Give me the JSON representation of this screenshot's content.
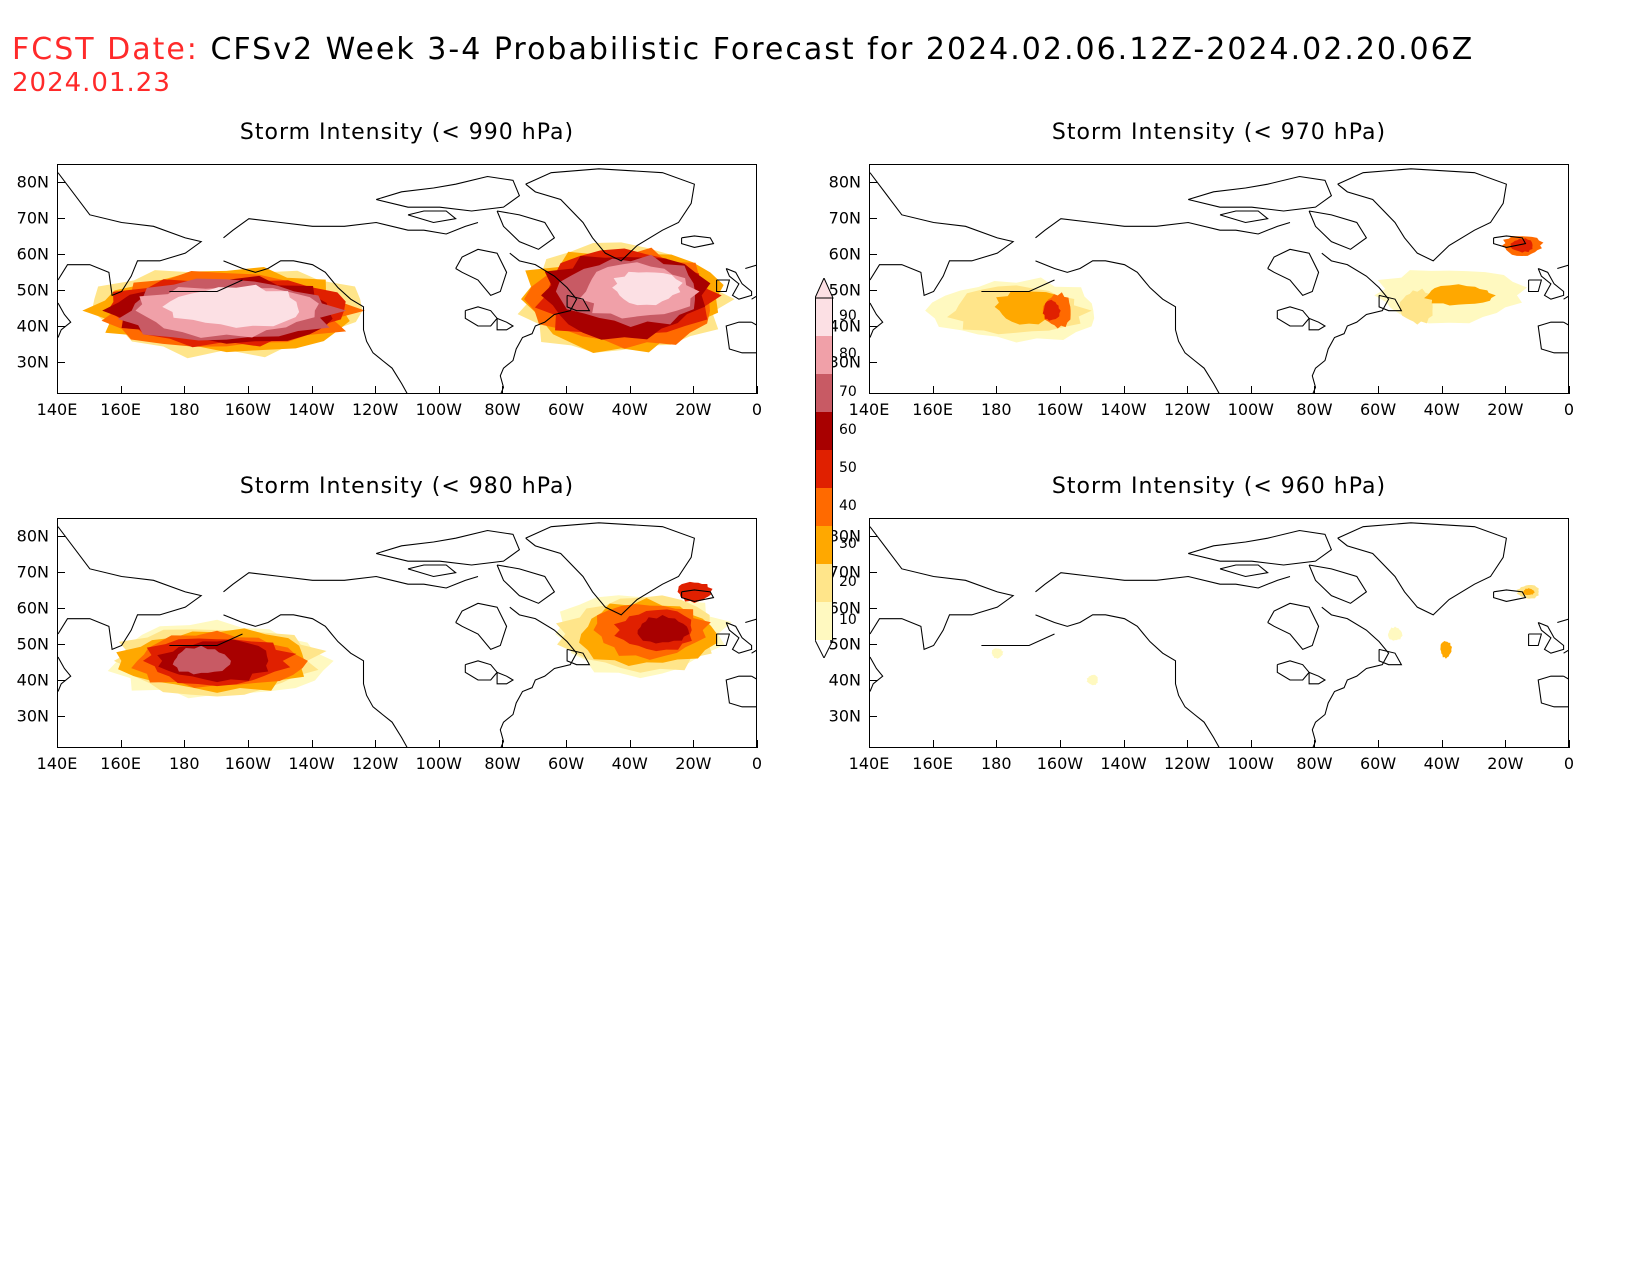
{
  "header": {
    "fcst_label": "FCST Date:",
    "title": "CFSv2 Week 3-4 Probabilistic Forecast for 2024.02.06.12Z-2024.02.20.06Z",
    "fcst_date": "2024.01.23"
  },
  "colors": {
    "header_accent": "#ff2a2a",
    "levels": [
      "#fff9c0",
      "#ffe58a",
      "#ffa800",
      "#ff6a00",
      "#e02000",
      "#a80000",
      "#c85a64",
      "#f0a0a8",
      "#fce0e4"
    ]
  },
  "axes": {
    "lat_labels": [
      "80N",
      "70N",
      "60N",
      "50N",
      "40N",
      "30N"
    ],
    "lon_labels": [
      "140E",
      "160E",
      "180",
      "160W",
      "140W",
      "120W",
      "100W",
      "80W",
      "60W",
      "40W",
      "20W",
      "0"
    ]
  },
  "panels": [
    {
      "id": "p990",
      "title": "Storm Intensity (< 990 hPa)"
    },
    {
      "id": "p970",
      "title": "Storm Intensity (< 970 hPa)"
    },
    {
      "id": "p980",
      "title": "Storm Intensity (< 980 hPa)"
    },
    {
      "id": "p960",
      "title": "Storm Intensity (< 960 hPa)"
    }
  ],
  "colorbar": {
    "labels": [
      "90",
      "80",
      "70",
      "60",
      "50",
      "40",
      "30",
      "20",
      "10"
    ]
  },
  "chart_data": [
    {
      "type": "heatmap",
      "title": "Storm Intensity (< 990 hPa)",
      "xrange": [
        "140E",
        "0"
      ],
      "yrange": [
        "25N",
        "85N"
      ],
      "features": [
        {
          "region": "North Pacific",
          "lon_range": [
            "145E",
            "130W"
          ],
          "lat_range": [
            "33N",
            "62N"
          ],
          "peak_probability": 90
        },
        {
          "region": "North Atlantic",
          "lon_range": [
            "85W",
            "5W"
          ],
          "lat_range": [
            "33N",
            "68N"
          ],
          "peak_probability": 90
        }
      ]
    },
    {
      "type": "heatmap",
      "title": "Storm Intensity (< 970 hPa)",
      "xrange": [
        "140E",
        "0"
      ],
      "yrange": [
        "25N",
        "85N"
      ],
      "features": [
        {
          "region": "North Pacific",
          "lon_range": [
            "155E",
            "140W"
          ],
          "lat_range": [
            "38N",
            "58N"
          ],
          "peak_probability": 50
        },
        {
          "region": "North Atlantic",
          "lon_range": [
            "70W",
            "10W"
          ],
          "lat_range": [
            "40N",
            "65N"
          ],
          "peak_probability": 50
        }
      ]
    },
    {
      "type": "heatmap",
      "title": "Storm Intensity (< 980 hPa)",
      "xrange": [
        "140E",
        "0"
      ],
      "yrange": [
        "25N",
        "85N"
      ],
      "features": [
        {
          "region": "North Pacific",
          "lon_range": [
            "155E",
            "130W"
          ],
          "lat_range": [
            "36N",
            "60N"
          ],
          "peak_probability": 90
        },
        {
          "region": "North Atlantic",
          "lon_range": [
            "70W",
            "5W"
          ],
          "lat_range": [
            "42N",
            "68N"
          ],
          "peak_probability": 80
        }
      ]
    },
    {
      "type": "heatmap",
      "title": "Storm Intensity (< 960 hPa)",
      "xrange": [
        "140E",
        "0"
      ],
      "yrange": [
        "25N",
        "85N"
      ],
      "features": [
        {
          "region": "North Pacific",
          "lon_range": [
            "180",
            "150W"
          ],
          "lat_range": [
            "42N",
            "51N"
          ],
          "peak_probability": 20
        },
        {
          "region": "North Atlantic",
          "lon_range": [
            "56W",
            "12W"
          ],
          "lat_range": [
            "50N",
            "66N"
          ],
          "peak_probability": 40
        }
      ]
    }
  ]
}
